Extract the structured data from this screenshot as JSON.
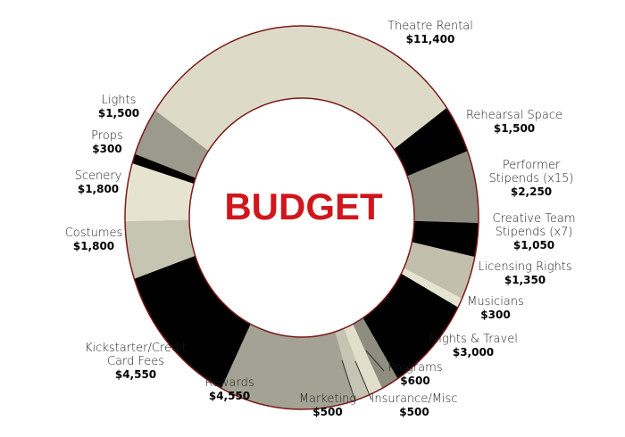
{
  "chart_data": {
    "type": "donut",
    "title": "BUDGET",
    "categories": [
      "Theatre Rental",
      "Rehearsal Space",
      "Performer Stipends (x15)",
      "Creative Team Stipends (x7)",
      "Licensing Rights",
      "Musicians",
      "Flights & Travel",
      "Programs",
      "Insurance/Misc",
      "Marketing",
      "Rewards",
      "Kickstarter/Credit Card Fees",
      "Costumes",
      "Scenery",
      "Props",
      "Lights"
    ],
    "values": [
      11400,
      1500,
      2250,
      1050,
      1350,
      300,
      3000,
      600,
      500,
      500,
      4550,
      4550,
      1800,
      1800,
      300,
      1500
    ],
    "value_labels": [
      "$11,400",
      "$1,500",
      "$2,250",
      "$1,050",
      "$1,350",
      "$300",
      "$3,000",
      "$600",
      "$500",
      "$500",
      "$4,550",
      "$4,550",
      "$1,800",
      "$1,800",
      "$300",
      "$1,500"
    ],
    "colors": [
      "#dddbc8",
      "#000000",
      "#8e8d80",
      "#000000",
      "#c2bfad",
      "#e6e4d1",
      "#000000",
      "#8e8d80",
      "#e1dfcb",
      "#c6c4b2",
      "#a3a294",
      "#000000",
      "#c6c4b2",
      "#e6e4d1",
      "#000000",
      "#9c9a8c"
    ]
  }
}
